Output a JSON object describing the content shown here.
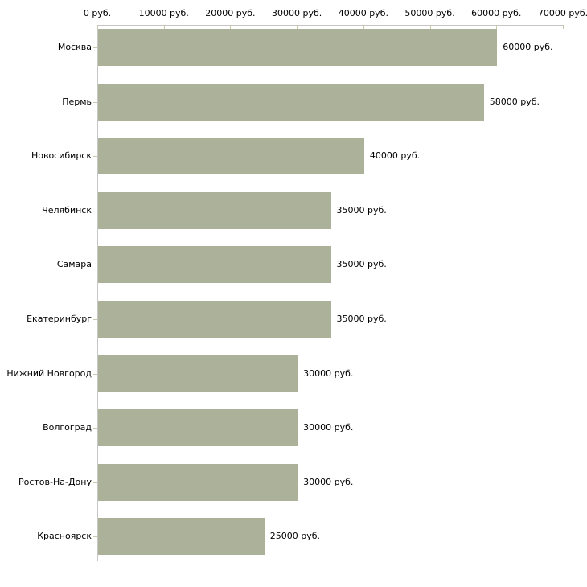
{
  "chart_data": {
    "type": "bar",
    "orientation": "horizontal",
    "title": "",
    "categories": [
      "Москва",
      "Пермь",
      "Новосибирск",
      "Челябинск",
      "Самара",
      "Екатеринбург",
      "Нижний Новгород",
      "Волгоград",
      "Ростов-На-Дону",
      "Красноярск"
    ],
    "values": [
      60000,
      58000,
      40000,
      35000,
      35000,
      35000,
      30000,
      30000,
      30000,
      25000
    ],
    "value_labels": [
      "60000 руб.",
      "58000 руб.",
      "40000 руб.",
      "35000 руб.",
      "35000 руб.",
      "35000 руб.",
      "30000 руб.",
      "30000 руб.",
      "30000 руб.",
      "25000 руб."
    ],
    "unit": "руб.",
    "x_axis": {
      "position": "top",
      "range": [
        0,
        70000
      ],
      "tick_values": [
        0,
        10000,
        20000,
        30000,
        40000,
        50000,
        60000,
        70000
      ],
      "tick_labels": [
        "0 руб.",
        "10000 руб.",
        "20000 руб.",
        "30000 руб.",
        "40000 руб.",
        "50000 руб.",
        "60000 руб.",
        "70000 руб."
      ]
    },
    "legend": null,
    "grid": false,
    "colors": {
      "bar": "#abb299",
      "axis_line": "#c6c6c6",
      "tick_mark": "#c9c9a9",
      "text": "#000000",
      "background": "#ffffff"
    }
  }
}
